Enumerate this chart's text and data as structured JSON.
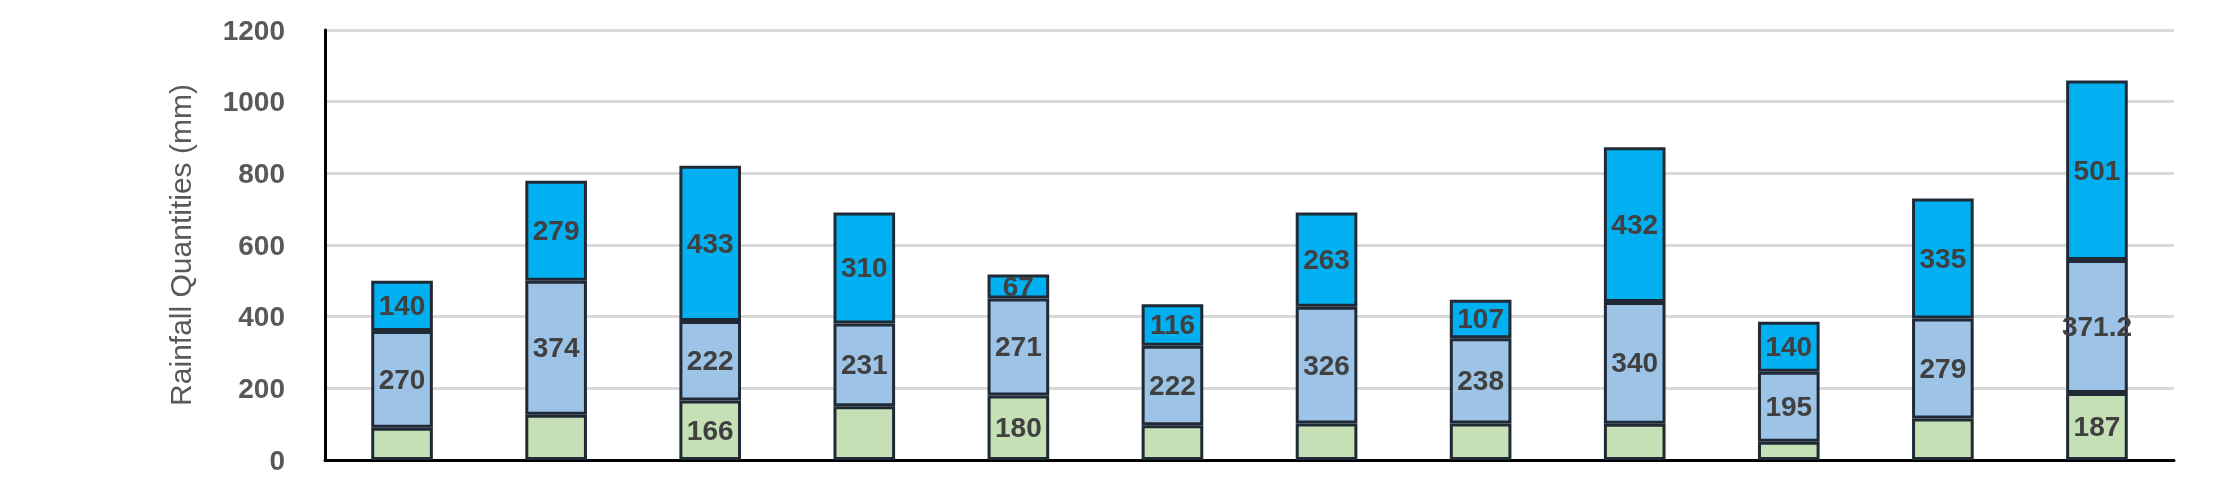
{
  "chart_data": {
    "type": "bar",
    "stacked": true,
    "ylabel": "Rainfall Quantities (mm)",
    "categories": [
      null,
      null,
      null,
      null,
      null,
      null,
      null,
      null,
      null,
      null,
      null,
      null
    ],
    "series": [
      {
        "color": "#c5e0b4",
        "values": [
          90,
          126,
          166,
          150,
          180,
          97,
          102,
          102,
          101,
          51,
          116,
          187
        ],
        "value_labels": [
          null,
          null,
          "166",
          null,
          "180",
          null,
          null,
          null,
          null,
          null,
          null,
          "187"
        ]
      },
      {
        "color": "#9dc3e6",
        "values": [
          270,
          374,
          222,
          231,
          271,
          222,
          326,
          238,
          340,
          195,
          279,
          371.2
        ],
        "value_labels": [
          "270",
          "374",
          "222",
          "231",
          "271",
          "222",
          "326",
          "238",
          "340",
          "195",
          "279",
          "371.2"
        ]
      },
      {
        "color": "#00b0f0",
        "values": [
          140,
          279,
          433,
          310,
          67,
          116,
          263,
          107,
          432,
          140,
          335,
          501
        ],
        "value_labels": [
          "140",
          "279",
          "433",
          "310",
          "67",
          "116",
          "263",
          "107",
          "432",
          "140",
          "335",
          "501"
        ]
      }
    ],
    "ylim": [
      0,
      1200
    ],
    "yticks": [
      0,
      200,
      400,
      600,
      800,
      1000,
      1200
    ],
    "grid": "y"
  }
}
